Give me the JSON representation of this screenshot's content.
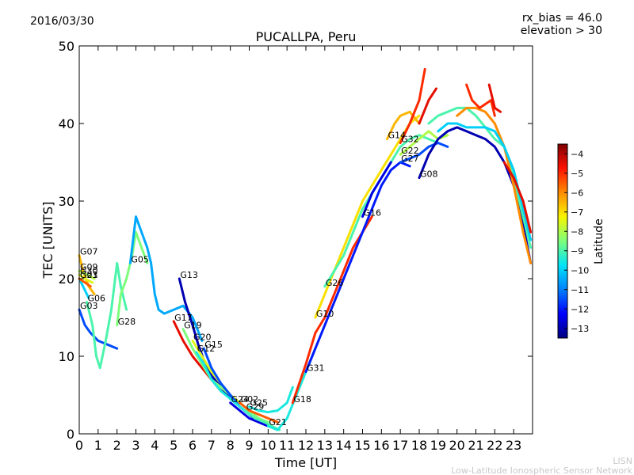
{
  "header": {
    "date": "2016/03/30",
    "station": "PUCALLPA, Peru",
    "rx_bias": "rx_bias = 46.0",
    "elevation": "elevation > 30"
  },
  "footer": {
    "org": "LISN",
    "org_full": "Low-Latitude Ionospheric Sensor Network"
  },
  "chart_data": {
    "type": "scatter",
    "title": "PUCALLPA, Peru",
    "xlabel": "Time [UT]",
    "ylabel": "TEC [UNITS]",
    "xlim": [
      0,
      24
    ],
    "ylim": [
      0,
      50
    ],
    "x_ticks": [
      "0",
      "1",
      "2",
      "3",
      "4",
      "5",
      "6",
      "7",
      "8",
      "9",
      "10",
      "11",
      "12",
      "13",
      "14",
      "15",
      "16",
      "17",
      "18",
      "19",
      "20",
      "21",
      "22",
      "23"
    ],
    "y_ticks": [
      "0",
      "10",
      "20",
      "30",
      "40",
      "50"
    ],
    "colorbar": {
      "label": "Latitude",
      "range": [
        -13.5,
        -3.5
      ],
      "ticks": [
        "−4",
        "−5",
        "−6",
        "−7",
        "−8",
        "−9",
        "−10",
        "−11",
        "−12",
        "−13"
      ],
      "colors": [
        "#00007f",
        "#0000ff",
        "#0080ff",
        "#00e4f8",
        "#7dff7a",
        "#f8f500",
        "#ff8c00",
        "#ff1200",
        "#7f0000"
      ]
    },
    "series": [
      {
        "name": "G01",
        "lat": -10.0,
        "points": [
          [
            0.0,
            20
          ],
          [
            0.3,
            18.5
          ],
          [
            0.5,
            17.5
          ]
        ]
      },
      {
        "name": "G03",
        "lat": -11.5,
        "points": [
          [
            0.0,
            16
          ],
          [
            0.3,
            14
          ],
          [
            0.6,
            13
          ],
          [
            1.0,
            12
          ],
          [
            1.5,
            11.5
          ],
          [
            2.0,
            11
          ]
        ]
      },
      {
        "name": "G06",
        "lat": -9.0,
        "points": [
          [
            0.4,
            17
          ],
          [
            0.7,
            14
          ],
          [
            0.9,
            10
          ],
          [
            1.1,
            8.5
          ],
          [
            1.4,
            12
          ],
          [
            1.7,
            16
          ],
          [
            2.0,
            22
          ],
          [
            2.2,
            19
          ],
          [
            2.5,
            16
          ]
        ]
      },
      {
        "name": "G07",
        "lat": -6.5,
        "points": [
          [
            0.0,
            23
          ],
          [
            0.2,
            21
          ],
          [
            0.5,
            19
          ],
          [
            0.8,
            18
          ]
        ]
      },
      {
        "name": "G09",
        "lat": -8.0,
        "points": [
          [
            0.0,
            21
          ],
          [
            0.4,
            20.5
          ],
          [
            0.8,
            20
          ]
        ]
      },
      {
        "name": "G30",
        "lat": -7.5,
        "points": [
          [
            0.0,
            20.5
          ],
          [
            0.3,
            20
          ],
          [
            0.7,
            19.5
          ]
        ]
      },
      {
        "name": "G23",
        "lat": -5.5,
        "points": [
          [
            0.0,
            20
          ],
          [
            0.3,
            19.5
          ],
          [
            0.6,
            19
          ]
        ]
      },
      {
        "name": "G28",
        "lat": -8.5,
        "points": [
          [
            2.0,
            14
          ],
          [
            2.2,
            18
          ],
          [
            2.5,
            20
          ],
          [
            2.8,
            23
          ],
          [
            3.0,
            26
          ],
          [
            3.3,
            24
          ],
          [
            3.6,
            22
          ]
        ]
      },
      {
        "name": "G05",
        "lat": -10.5,
        "points": [
          [
            2.7,
            22
          ],
          [
            2.9,
            26
          ],
          [
            3.0,
            28
          ],
          [
            3.3,
            26
          ],
          [
            3.6,
            24
          ],
          [
            3.8,
            22
          ],
          [
            4.0,
            18
          ],
          [
            4.2,
            16
          ],
          [
            4.5,
            15.5
          ],
          [
            5.0,
            16
          ],
          [
            5.5,
            16.5
          ],
          [
            6.0,
            15
          ],
          [
            6.5,
            12
          ]
        ]
      },
      {
        "name": "G13",
        "lat": -13.0,
        "points": [
          [
            5.3,
            20
          ],
          [
            5.6,
            17
          ],
          [
            6.0,
            14
          ],
          [
            6.3,
            11.5
          ],
          [
            6.6,
            9.5
          ],
          [
            7.0,
            7.5
          ],
          [
            7.5,
            6
          ],
          [
            8.0,
            4.5
          ]
        ]
      },
      {
        "name": "G17",
        "lat": -4.5,
        "points": [
          [
            5.0,
            14.5
          ],
          [
            5.5,
            12
          ],
          [
            6.0,
            10
          ],
          [
            6.5,
            8.5
          ],
          [
            7.0,
            7
          ],
          [
            7.5,
            5.5
          ]
        ]
      },
      {
        "name": "G19",
        "lat": -8.5,
        "points": [
          [
            5.5,
            13.5
          ],
          [
            6.0,
            11
          ],
          [
            6.5,
            9
          ],
          [
            7.0,
            7
          ],
          [
            7.5,
            6
          ],
          [
            8.0,
            5
          ],
          [
            8.5,
            4
          ],
          [
            9.0,
            3
          ],
          [
            9.5,
            2
          ],
          [
            10.0,
            1.5
          ]
        ]
      },
      {
        "name": "G20",
        "lat": -7.5,
        "points": [
          [
            6.0,
            12
          ],
          [
            6.5,
            10
          ],
          [
            7.0,
            8
          ],
          [
            7.5,
            6.5
          ],
          [
            8.0,
            5
          ],
          [
            8.5,
            4
          ]
        ]
      },
      {
        "name": "G15",
        "lat": -11.5,
        "points": [
          [
            6.6,
            11
          ],
          [
            7.0,
            8.5
          ],
          [
            7.5,
            6.5
          ],
          [
            8.0,
            5
          ],
          [
            8.5,
            3.5
          ],
          [
            9.0,
            2.5
          ],
          [
            9.5,
            1.5
          ],
          [
            10.0,
            1
          ]
        ]
      },
      {
        "name": "G12",
        "lat": -9.5,
        "points": [
          [
            6.2,
            10.5
          ],
          [
            6.6,
            9
          ],
          [
            7.0,
            7
          ],
          [
            7.5,
            5.5
          ],
          [
            8.0,
            4.5
          ],
          [
            8.5,
            3.5
          ],
          [
            9.0,
            2.5
          ]
        ]
      },
      {
        "name": "G02",
        "lat": -5.5,
        "points": [
          [
            8.5,
            4
          ],
          [
            9.0,
            3
          ],
          [
            9.5,
            2.5
          ],
          [
            10.0,
            2
          ],
          [
            10.5,
            1.5
          ]
        ]
      },
      {
        "name": "G24",
        "lat": -12.5,
        "points": [
          [
            8.0,
            4
          ],
          [
            8.5,
            3
          ],
          [
            9.0,
            2
          ],
          [
            9.5,
            1.5
          ],
          [
            10.0,
            1
          ]
        ]
      },
      {
        "name": "G29",
        "lat": -9.0,
        "points": [
          [
            8.8,
            3
          ],
          [
            9.3,
            2
          ],
          [
            9.8,
            1.5
          ],
          [
            10.2,
            1
          ],
          [
            10.6,
            0.5
          ]
        ]
      },
      {
        "name": "G25",
        "lat": -9.5,
        "points": [
          [
            9.0,
            3.5
          ],
          [
            9.5,
            3
          ],
          [
            10.0,
            2.8
          ],
          [
            10.5,
            3
          ],
          [
            11.0,
            4
          ],
          [
            11.3,
            6
          ]
        ]
      },
      {
        "name": "G21",
        "lat": -9.5,
        "points": [
          [
            10.0,
            1
          ],
          [
            10.5,
            0.5
          ],
          [
            11.0,
            2
          ],
          [
            11.5,
            5
          ],
          [
            12.0,
            8
          ],
          [
            12.5,
            11
          ]
        ]
      },
      {
        "name": "G18",
        "lat": -5.0,
        "points": [
          [
            11.3,
            4
          ],
          [
            12.0,
            9
          ],
          [
            12.5,
            13
          ],
          [
            13.0,
            15
          ],
          [
            13.5,
            18
          ],
          [
            14.0,
            21
          ],
          [
            14.5,
            24
          ],
          [
            15.0,
            26
          ],
          [
            15.5,
            28
          ]
        ]
      },
      {
        "name": "G31",
        "lat": -12.0,
        "points": [
          [
            12.0,
            8
          ],
          [
            12.5,
            11
          ],
          [
            13.0,
            14
          ],
          [
            13.5,
            17
          ],
          [
            14.0,
            20
          ],
          [
            14.5,
            23
          ],
          [
            15.0,
            26
          ],
          [
            15.5,
            29
          ],
          [
            16.0,
            32
          ],
          [
            16.5,
            34
          ],
          [
            17.0,
            35
          ],
          [
            17.5,
            34.5
          ]
        ]
      },
      {
        "name": "G10",
        "lat": -7.0,
        "points": [
          [
            12.5,
            15
          ],
          [
            13.0,
            18
          ],
          [
            13.5,
            21
          ],
          [
            14.0,
            24
          ],
          [
            14.5,
            27
          ],
          [
            15.0,
            30
          ],
          [
            15.5,
            32
          ],
          [
            16.0,
            34
          ],
          [
            16.5,
            36
          ],
          [
            17.0,
            38
          ],
          [
            17.5,
            40
          ],
          [
            18.0,
            41
          ]
        ]
      },
      {
        "name": "G26",
        "lat": -9.0,
        "points": [
          [
            13.0,
            19
          ],
          [
            13.5,
            21
          ],
          [
            14.0,
            23
          ],
          [
            14.5,
            26
          ],
          [
            15.0,
            29
          ],
          [
            15.5,
            31
          ],
          [
            16.0,
            33
          ],
          [
            16.5,
            35
          ],
          [
            17.0,
            37
          ],
          [
            17.5,
            38
          ],
          [
            18.0,
            38.5
          ],
          [
            18.5,
            38
          ],
          [
            19.0,
            37.5
          ]
        ]
      },
      {
        "name": "G16",
        "lat": -12.5,
        "points": [
          [
            15.0,
            28
          ],
          [
            15.5,
            31
          ],
          [
            16.0,
            33
          ],
          [
            16.5,
            35
          ]
        ]
      },
      {
        "name": "G14",
        "lat": -6.5,
        "points": [
          [
            16.3,
            38
          ],
          [
            16.7,
            40
          ],
          [
            17.0,
            41
          ],
          [
            17.5,
            41.5
          ],
          [
            18.0,
            40
          ]
        ]
      },
      {
        "name": "G32",
        "lat": -5.0,
        "points": [
          [
            17.0,
            37.5
          ],
          [
            17.5,
            40
          ],
          [
            18.0,
            43
          ],
          [
            18.3,
            47
          ]
        ]
      },
      {
        "name": "G22",
        "lat": -8.0,
        "points": [
          [
            17.0,
            36
          ],
          [
            17.5,
            37
          ],
          [
            18.0,
            38
          ],
          [
            18.5,
            39
          ],
          [
            19.0,
            38
          ],
          [
            19.5,
            38.5
          ]
        ]
      },
      {
        "name": "G27",
        "lat": -11.5,
        "points": [
          [
            17.0,
            35
          ],
          [
            17.5,
            35.5
          ],
          [
            18.0,
            36
          ],
          [
            18.5,
            37
          ],
          [
            19.0,
            37.5
          ],
          [
            19.5,
            37
          ]
        ]
      },
      {
        "name": "G08",
        "lat": -13.0,
        "points": [
          [
            18.0,
            33
          ],
          [
            18.5,
            36
          ],
          [
            19.0,
            38
          ],
          [
            19.5,
            39
          ],
          [
            20.0,
            39.5
          ],
          [
            20.5,
            39
          ],
          [
            21.0,
            38.5
          ],
          [
            21.5,
            38
          ],
          [
            22.0,
            37
          ],
          [
            22.5,
            35
          ],
          [
            23.0,
            32
          ],
          [
            23.5,
            27
          ],
          [
            23.9,
            22
          ]
        ]
      },
      {
        "name": "",
        "lat": -4.5,
        "points": [
          [
            18.0,
            40
          ],
          [
            18.5,
            43
          ],
          [
            18.9,
            44.5
          ]
        ]
      },
      {
        "name": "",
        "lat": -9.0,
        "points": [
          [
            18.5,
            40
          ],
          [
            19.0,
            41
          ],
          [
            19.5,
            41.5
          ],
          [
            20.0,
            42
          ],
          [
            20.5,
            42
          ],
          [
            21.0,
            41
          ],
          [
            21.5,
            39.5
          ],
          [
            22.0,
            38
          ],
          [
            22.5,
            37
          ],
          [
            23.0,
            33
          ],
          [
            23.5,
            28
          ],
          [
            23.9,
            24
          ]
        ]
      },
      {
        "name": "",
        "lat": -6.0,
        "points": [
          [
            20.0,
            41
          ],
          [
            20.5,
            42
          ],
          [
            21.0,
            42
          ],
          [
            21.5,
            41.5
          ],
          [
            22.0,
            40
          ],
          [
            22.5,
            37
          ],
          [
            23.0,
            32
          ],
          [
            23.5,
            26
          ],
          [
            23.9,
            22
          ]
        ]
      },
      {
        "name": "",
        "lat": -5.0,
        "points": [
          [
            20.5,
            45
          ],
          [
            20.8,
            43
          ],
          [
            21.2,
            42
          ],
          [
            21.5,
            42.5
          ],
          [
            21.8,
            43
          ],
          [
            22.0,
            41
          ]
        ]
      },
      {
        "name": "",
        "lat": -4.5,
        "points": [
          [
            21.7,
            45
          ],
          [
            22.0,
            42
          ],
          [
            22.3,
            41.5
          ]
        ]
      },
      {
        "name": "",
        "lat": -10.0,
        "points": [
          [
            19.0,
            39
          ],
          [
            19.5,
            40
          ],
          [
            20.0,
            40
          ],
          [
            20.5,
            39.5
          ],
          [
            21.0,
            39.5
          ],
          [
            21.5,
            39.5
          ],
          [
            22.0,
            39
          ],
          [
            22.5,
            37
          ],
          [
            23.0,
            34
          ],
          [
            23.5,
            29
          ],
          [
            23.9,
            25
          ]
        ]
      },
      {
        "name": "",
        "lat": -4.5,
        "points": [
          [
            22.5,
            35
          ],
          [
            23.0,
            33
          ],
          [
            23.5,
            30
          ],
          [
            23.9,
            26
          ]
        ]
      }
    ]
  }
}
